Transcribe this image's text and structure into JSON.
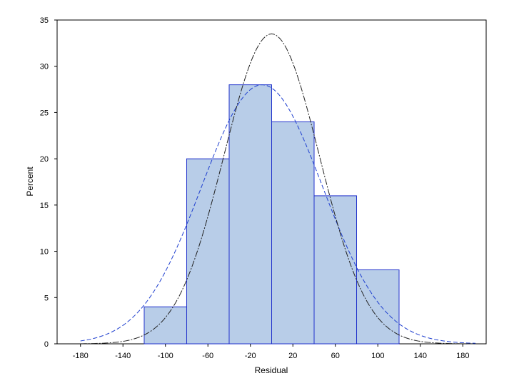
{
  "chart_data": {
    "type": "bar",
    "title": "",
    "xlabel": "Residual",
    "ylabel": "Percent",
    "xlim": [
      -202,
      202
    ],
    "ylim": [
      0,
      35
    ],
    "x_ticks": [
      -180,
      -140,
      -100,
      -60,
      -20,
      20,
      60,
      100,
      140,
      180
    ],
    "y_ticks": [
      0,
      5,
      10,
      15,
      20,
      25,
      30,
      35
    ],
    "bins": [
      {
        "from": -120,
        "to": -80,
        "value": 4
      },
      {
        "from": -80,
        "to": -40,
        "value": 20
      },
      {
        "from": -40,
        "to": 0,
        "value": 28
      },
      {
        "from": 0,
        "to": 40,
        "value": 24
      },
      {
        "from": 40,
        "to": 80,
        "value": 16
      },
      {
        "from": 80,
        "to": 120,
        "value": 8
      }
    ],
    "curves": [
      {
        "kind": "normal",
        "mean": -9,
        "sd": 57,
        "peak": 28,
        "color": "#1f3fcf",
        "dash": "6,3"
      },
      {
        "kind": "normal",
        "mean": 0,
        "sd": 45,
        "peak": 33.5,
        "color": "#222222",
        "dash": "9,2,2,2"
      }
    ],
    "grid": false,
    "colors": {
      "bar_fill": "#b8cde8",
      "bar_stroke": "#2233cc",
      "axis": "#000000"
    }
  }
}
